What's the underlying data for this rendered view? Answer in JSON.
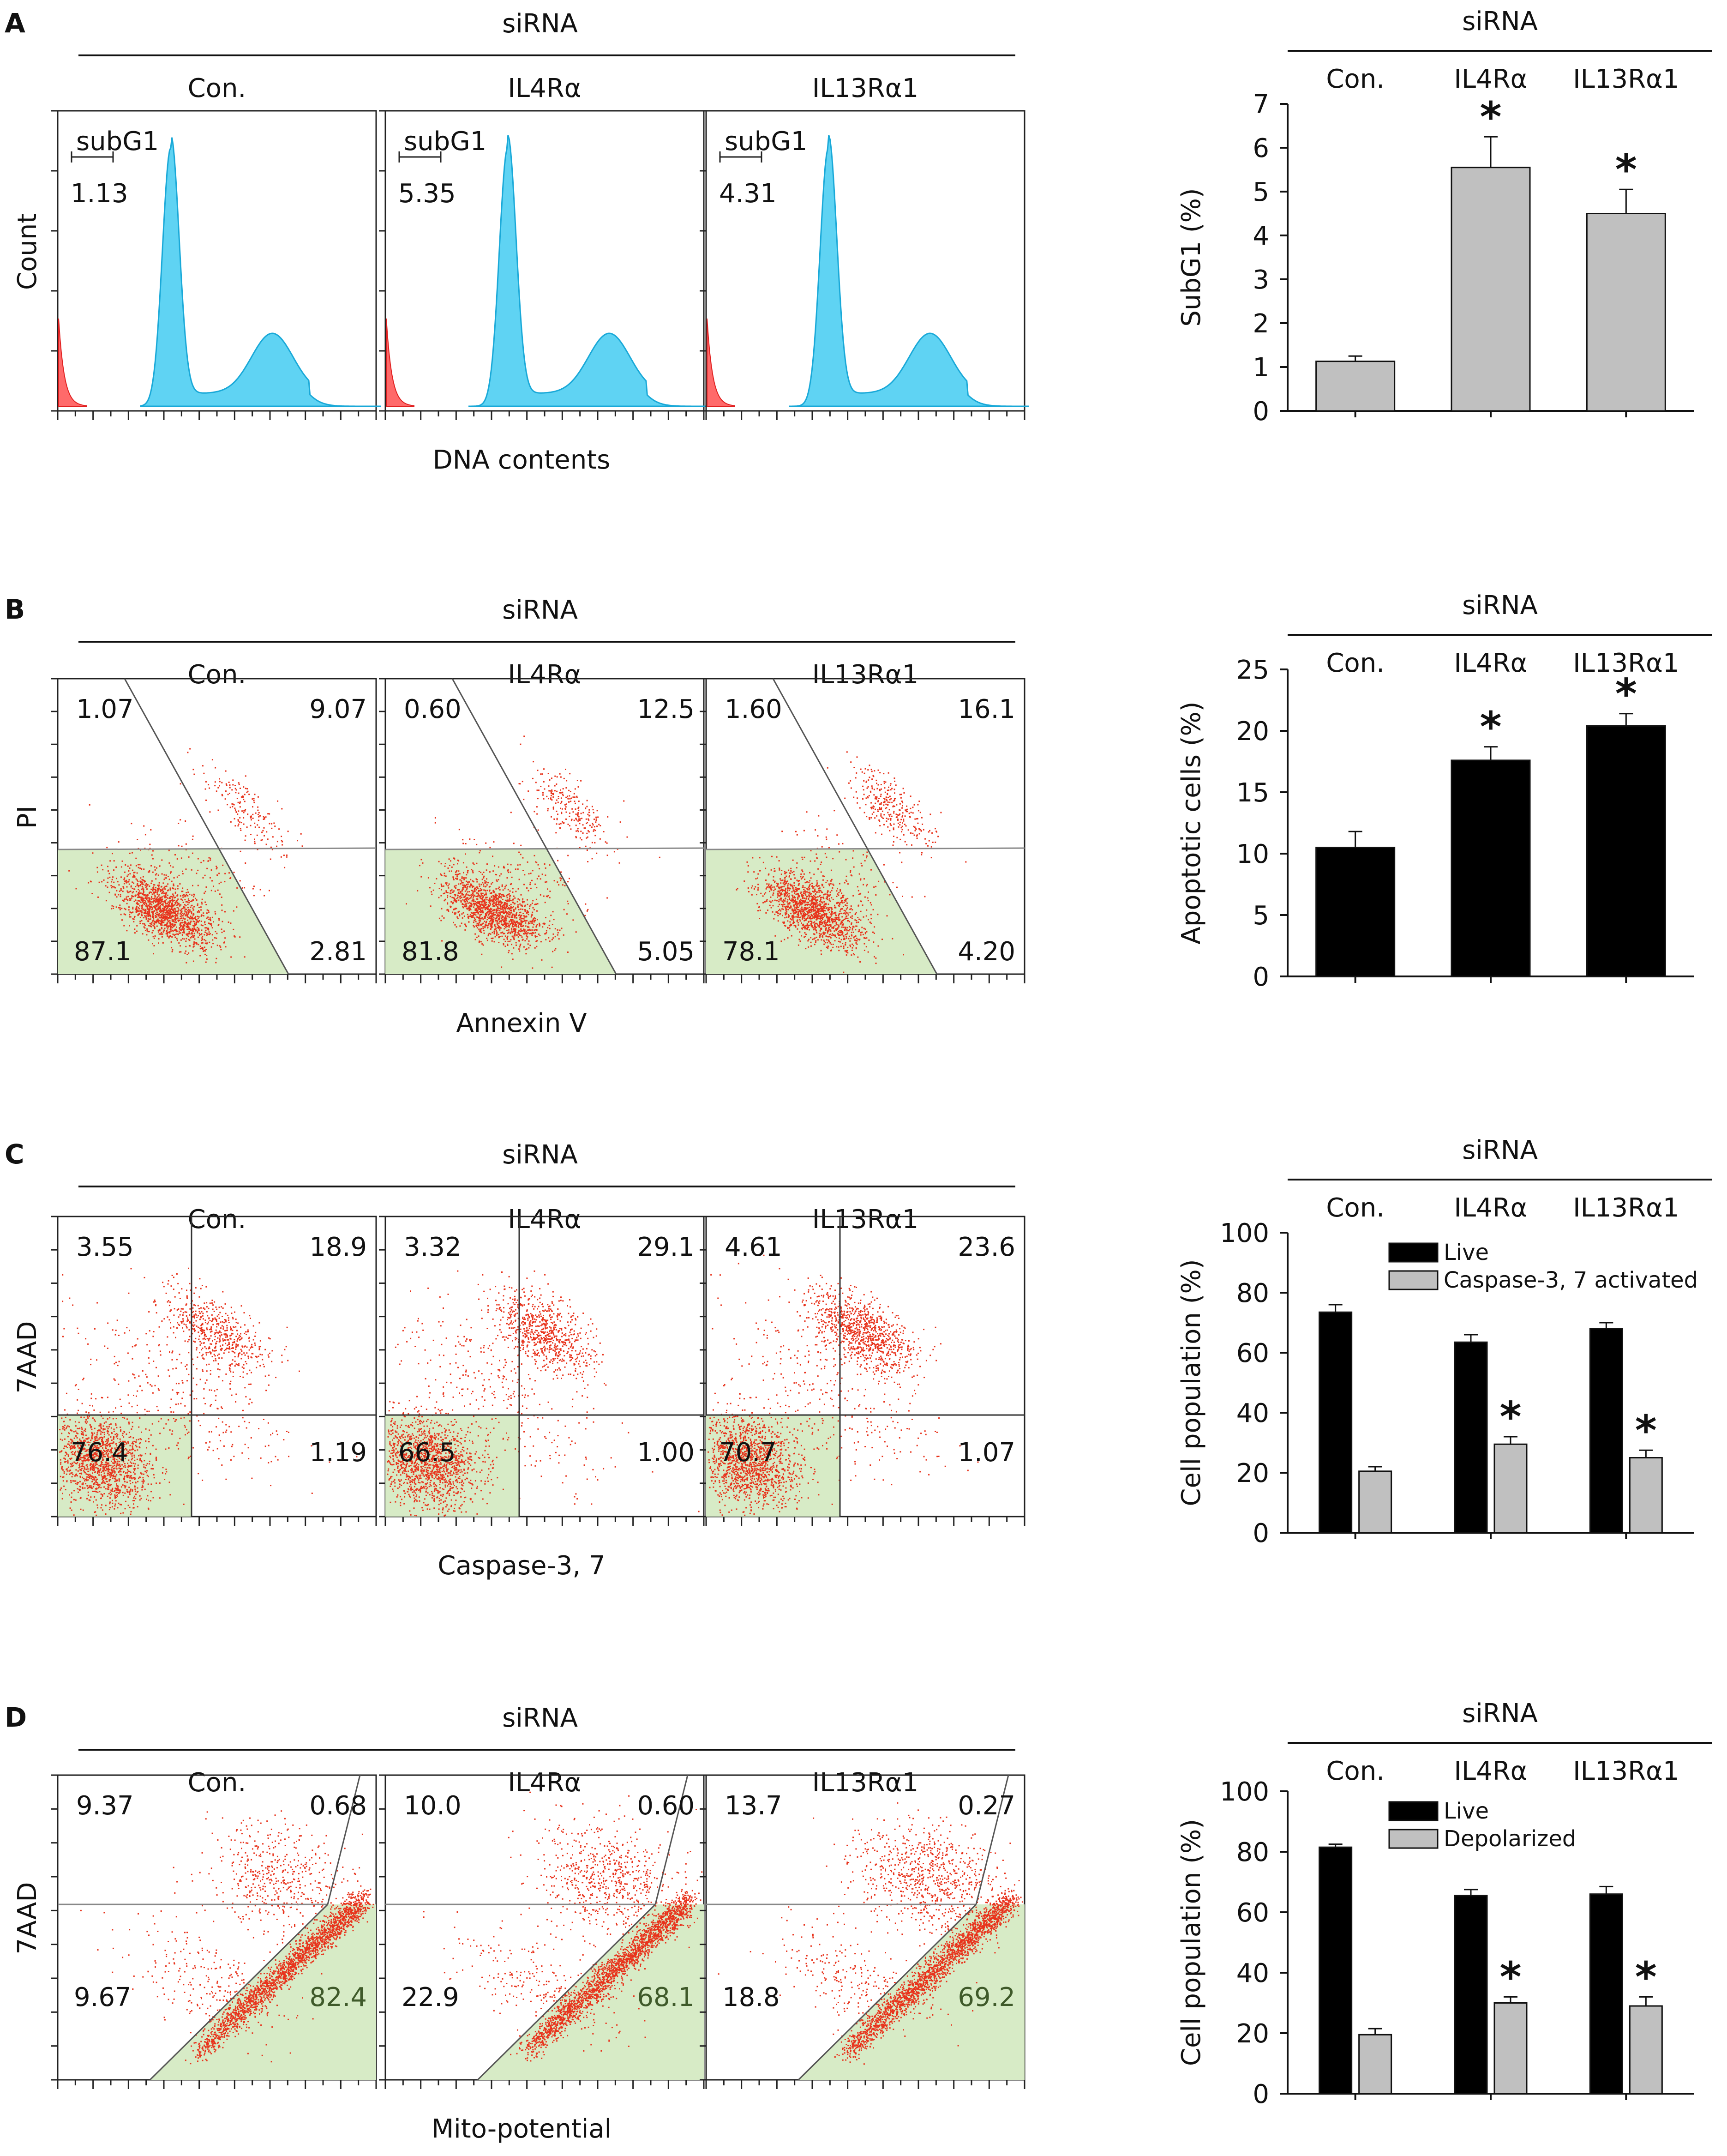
{
  "panels": [
    {
      "letter": "A",
      "siRNA_label": "siRNA",
      "conditions": [
        "Con.",
        "IL4Rα",
        "IL13Rα1"
      ],
      "flow": {
        "kind": "histogram",
        "xlabel": "DNA contents",
        "ylabel": "Count",
        "gate_label": "subG1",
        "values": [
          [
            "1.13"
          ],
          [
            "5.35"
          ],
          [
            "4.31"
          ]
        ]
      }
    },
    {
      "letter": "B",
      "siRNA_label": "siRNA",
      "conditions": [
        "Con.",
        "IL4Rα",
        "IL13Rα1"
      ],
      "flow": {
        "kind": "annexin",
        "xlabel": "Annexin V",
        "ylabel": "PI",
        "values": [
          [
            "1.07",
            "9.07",
            "87.1",
            "2.81"
          ],
          [
            "0.60",
            "12.5",
            "81.8",
            "5.05"
          ],
          [
            "1.60",
            "16.1",
            "78.1",
            "4.20"
          ]
        ]
      }
    },
    {
      "letter": "C",
      "siRNA_label": "siRNA",
      "conditions": [
        "Con.",
        "IL4Rα",
        "IL13Rα1"
      ],
      "flow": {
        "kind": "caspase",
        "xlabel": "Caspase-3, 7",
        "ylabel": "7AAD",
        "values": [
          [
            "3.55",
            "18.9",
            "76.4",
            "1.19"
          ],
          [
            "3.32",
            "29.1",
            "66.5",
            "1.00"
          ],
          [
            "4.61",
            "23.6",
            "70.7",
            "1.07"
          ]
        ]
      }
    },
    {
      "letter": "D",
      "siRNA_label": "siRNA",
      "conditions": [
        "Con.",
        "IL4Rα",
        "IL13Rα1"
      ],
      "flow": {
        "kind": "mito",
        "xlabel": "Mito-potential",
        "ylabel": "7AAD",
        "values": [
          [
            "9.37",
            "0.68",
            "9.67",
            "82.4"
          ],
          [
            "10.0",
            "0.60",
            "22.9",
            "68.1"
          ],
          [
            "13.7",
            "0.27",
            "18.8",
            "69.2"
          ]
        ]
      }
    }
  ],
  "chart_data": [
    {
      "type": "bar",
      "panel": "A",
      "header": "siRNA",
      "categories": [
        "Con.",
        "IL4Rα",
        "IL13Rα1"
      ],
      "series": [
        {
          "name": "SubG1",
          "values": [
            1.13,
            5.55,
            4.5
          ],
          "errors": [
            0.12,
            0.7,
            0.55
          ],
          "color": "#c0c0c0"
        }
      ],
      "significance": [
        false,
        true,
        true
      ],
      "ylabel": "SubG1 (%)",
      "ylim": [
        0,
        7
      ],
      "yticks": [
        0,
        1,
        2,
        3,
        4,
        5,
        6,
        7
      ],
      "legend": null
    },
    {
      "type": "bar",
      "panel": "B",
      "header": "siRNA",
      "categories": [
        "Con.",
        "IL4Rα",
        "IL13Rα1"
      ],
      "series": [
        {
          "name": "Apoptotic cells",
          "values": [
            10.5,
            17.6,
            20.4
          ],
          "errors": [
            1.3,
            1.1,
            1.0
          ],
          "color": "#000000"
        }
      ],
      "significance": [
        false,
        true,
        true
      ],
      "ylabel": "Apoptotic cells (%)",
      "ylim": [
        0,
        25
      ],
      "yticks": [
        0,
        5,
        10,
        15,
        20,
        25
      ],
      "legend": null
    },
    {
      "type": "bar",
      "panel": "C",
      "header": "siRNA",
      "categories": [
        "Con.",
        "IL4Rα",
        "IL13Rα1"
      ],
      "series": [
        {
          "name": "Live",
          "values": [
            73.5,
            63.5,
            68
          ],
          "errors": [
            2.5,
            2.5,
            2.0
          ],
          "color": "#000000"
        },
        {
          "name": "Caspase-3, 7 activated",
          "values": [
            20.5,
            29.5,
            25
          ],
          "errors": [
            1.5,
            2.5,
            2.5
          ],
          "color": "#c0c0c0"
        }
      ],
      "significance": [
        [
          false,
          false
        ],
        [
          false,
          true
        ],
        [
          false,
          true
        ]
      ],
      "ylabel": "Cell population (%)",
      "ylim": [
        0,
        100
      ],
      "yticks": [
        0,
        20,
        40,
        60,
        80,
        100
      ],
      "legend": "top-center"
    },
    {
      "type": "bar",
      "panel": "D",
      "header": "siRNA",
      "categories": [
        "Con.",
        "IL4Rα",
        "IL13Rα1"
      ],
      "series": [
        {
          "name": "Live",
          "values": [
            81.5,
            65.5,
            66
          ],
          "errors": [
            1.0,
            2.0,
            2.5
          ],
          "color": "#000000"
        },
        {
          "name": "Depolarized",
          "values": [
            19.5,
            30,
            29
          ],
          "errors": [
            2.0,
            2.0,
            3.0
          ],
          "color": "#c0c0c0"
        }
      ],
      "significance": [
        [
          false,
          false
        ],
        [
          false,
          true
        ],
        [
          false,
          true
        ]
      ],
      "ylabel": "Cell population (%)",
      "ylim": [
        0,
        100
      ],
      "yticks": [
        0,
        20,
        40,
        60,
        80,
        100
      ],
      "legend": "top-center"
    }
  ]
}
